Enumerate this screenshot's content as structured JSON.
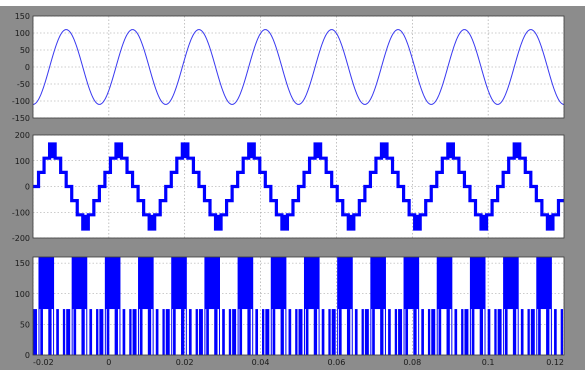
{
  "figure": {
    "background": "#8c8c8c",
    "axes_background": "#ffffff",
    "grid": true,
    "grid_style": "dotted"
  },
  "chart_data": [
    {
      "type": "line",
      "series": [
        {
          "signal": "sine",
          "color": "#3a3af0",
          "amplitude": 110,
          "cycles": 8,
          "phase_deg": -90,
          "x_start": -0.02,
          "x_end": 0.12
        }
      ],
      "xlim": [
        -0.02,
        0.12
      ],
      "ylim": [
        -150,
        150
      ],
      "yticks": [
        "150",
        "100",
        "50",
        "0",
        "-50",
        "-100",
        "-150"
      ],
      "ytick_values": [
        150,
        100,
        50,
        0,
        -50,
        -100,
        -150
      ],
      "grid": true
    },
    {
      "type": "line",
      "series": [
        {
          "signal": "multilevel-staircase",
          "color": "#0000ff",
          "levels": [
            0,
            55,
            110,
            165,
            110,
            55,
            0,
            -55,
            -110,
            -165,
            -110,
            -55
          ],
          "cycles": 8,
          "x_start": -0.02,
          "x_end": 0.12
        }
      ],
      "xlim": [
        -0.02,
        0.12
      ],
      "ylim": [
        -200,
        200
      ],
      "yticks": [
        "200",
        "100",
        "0",
        "-100",
        "-200"
      ],
      "ytick_values": [
        200,
        100,
        0,
        -100,
        -200
      ],
      "grid": true
    },
    {
      "type": "line",
      "series": [
        {
          "signal": "pwm-pulses",
          "color": "#0000ff",
          "high_level": 160,
          "mid_level": 75,
          "pulses": 16,
          "x_start": -0.02,
          "x_end": 0.12
        }
      ],
      "xlim": [
        -0.02,
        0.12
      ],
      "ylim": [
        0,
        160
      ],
      "yticks": [
        "150",
        "100",
        "50",
        "0"
      ],
      "ytick_values": [
        150,
        100,
        50,
        0
      ],
      "xticks": [
        "-0.02",
        "0",
        "0.02",
        "0.04",
        "0.06",
        "0.08",
        "0.1",
        "0.12"
      ],
      "xtick_values": [
        -0.02,
        0,
        0.02,
        0.04,
        0.06,
        0.08,
        0.1,
        0.12
      ],
      "grid": true
    }
  ]
}
